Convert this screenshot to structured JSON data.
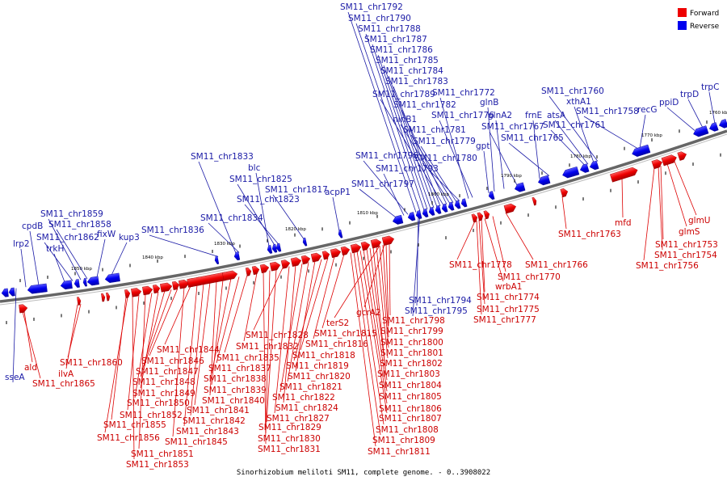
{
  "caption": "Sinorhizobium meliloti SM11, complete genome. - 0..3908022",
  "legend": [
    {
      "name": "Forward",
      "color": "#ee0000"
    },
    {
      "name": "Reverse",
      "color": "#0000ee"
    }
  ],
  "ticks": [
    "1840 kbp",
    "1850 kbp",
    "1830 kbp",
    "1820 kbp",
    "1810 kbp",
    "1800 kbp",
    "1790 kbp",
    "1780 kbp",
    "1770 kbp",
    "1760 kbp",
    "1850 kbp"
  ],
  "reverse_labels": [
    "SM11_chr1792",
    "SM11_chr1790",
    "SM11_chr1788",
    "SM11_chr1787",
    "SM11_chr1786",
    "SM11_chr1785",
    "SM11_chr1784",
    "SM11_chr1783",
    "SM11_chr1789",
    "SM11_chr1772",
    "SM11_chr1782",
    "ninB1",
    "SM11_chr1776",
    "SM11_chr1781",
    "SM11_chr1779",
    "SM11_chr1796",
    "SM11_chr1780",
    "SM11_chr1793",
    "SM11_chr1797",
    "glnB",
    "glnA2",
    "SM11_chr1767",
    "gpt",
    "frnE",
    "SM11_chr1765",
    "SM11_chr1760",
    "xthA1",
    "atsA",
    "SM11_chr1758",
    "SM11_chr1761",
    "recG",
    "ppiD",
    "trpD",
    "trpC",
    "blc",
    "SM11_chr1833",
    "SM11_chr1825",
    "SM11_chr1817",
    "SM11_chr1823",
    "acpP1",
    "SM11_chr1834",
    "SM11_chr1836",
    "SM11_chr1859",
    "SM11_chr1858",
    "cpdB",
    "fixW",
    "SM11_chr1862",
    "lrp2",
    "kup3",
    "trkH",
    "SM11_chr1794",
    "SM11_chr1795",
    "sseA"
  ],
  "forward_labels": [
    "SM11_chr1763",
    "mfd",
    "glmU",
    "glmS",
    "SM11_chr1753",
    "SM11_chr1754",
    "SM11_chr1756",
    "SM11_chr1766",
    "SM11_chr1770",
    "SM11_chr1778",
    "wrbA1",
    "SM11_chr1774",
    "SM11_chr1775",
    "SM11_chr1777",
    "terS2",
    "gcrA2",
    "SM11_chr1798",
    "SM11_chr1799",
    "SM11_chr1800",
    "SM11_chr1801",
    "SM11_chr1802",
    "SM11_chr1803",
    "SM11_chr1804",
    "SM11_chr1805",
    "SM11_chr1806",
    "SM11_chr1807",
    "SM11_chr1808",
    "SM11_chr1809",
    "SM11_chr1811",
    "SM11_chr1815",
    "SM11_chr1816",
    "SM11_chr1818",
    "SM11_chr1819",
    "SM11_chr1820",
    "SM11_chr1821",
    "SM11_chr1822",
    "SM11_chr1824",
    "SM11_chr1827",
    "SM11_chr1828",
    "SM11_chr1829",
    "SM11_chr1830",
    "SM11_chr1831",
    "SM11_chr1832",
    "SM11_chr1835",
    "SM11_chr1837",
    "SM11_chr1838",
    "SM11_chr1839",
    "SM11_chr1840",
    "SM11_chr1841",
    "SM11_chr1842",
    "SM11_chr1843",
    "SM11_chr1844",
    "SM11_chr1845",
    "SM11_chr1846",
    "SM11_chr1847",
    "SM11_chr1848",
    "SM11_chr1849",
    "SM11_chr1850",
    "SM11_chr1851",
    "SM11_chr1852",
    "SM11_chr1853",
    "SM11_chr1855",
    "SM11_chr1856",
    "SM11_chr1860",
    "ilvA",
    "ald",
    "SM11_chr1865"
  ]
}
